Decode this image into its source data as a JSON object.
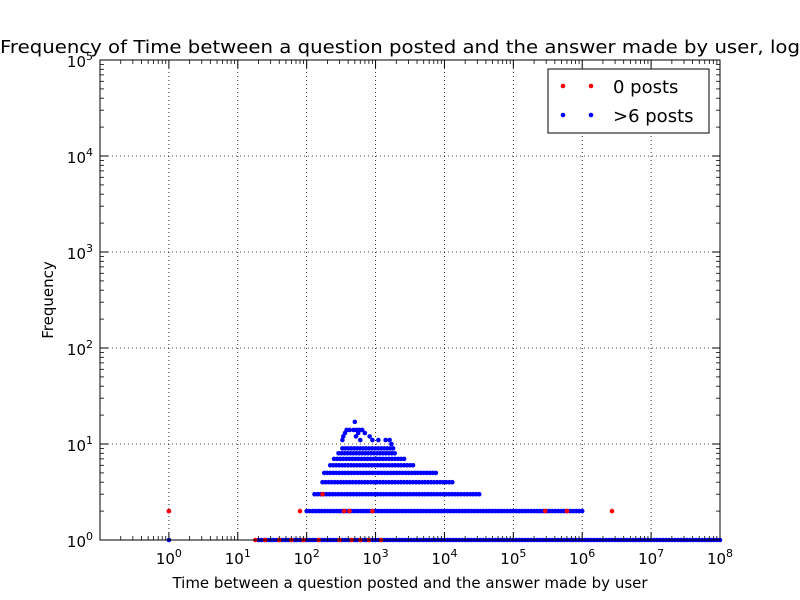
{
  "chart_data": {
    "type": "scatter",
    "title": "Frequency of Time between a question posted and the answer made by user, log",
    "xlabel": "Time between a question posted and the answer made by user",
    "ylabel": "Frequency",
    "x_scale": "log",
    "y_scale": "log",
    "xlim": [
      0.1,
      100000000
    ],
    "ylim": [
      1,
      100000
    ],
    "x_tick_labels": [
      {
        "base": "10",
        "exp": "0",
        "value": 1
      },
      {
        "base": "10",
        "exp": "1",
        "value": 10
      },
      {
        "base": "10",
        "exp": "2",
        "value": 100
      },
      {
        "base": "10",
        "exp": "3",
        "value": 1000
      },
      {
        "base": "10",
        "exp": "4",
        "value": 10000
      },
      {
        "base": "10",
        "exp": "5",
        "value": 100000
      },
      {
        "base": "10",
        "exp": "6",
        "value": 1000000
      },
      {
        "base": "10",
        "exp": "7",
        "value": 10000000
      },
      {
        "base": "10",
        "exp": "8",
        "value": 100000000
      }
    ],
    "y_tick_labels": [
      {
        "base": "10",
        "exp": "0",
        "value": 1
      },
      {
        "base": "10",
        "exp": "1",
        "value": 10
      },
      {
        "base": "10",
        "exp": "2",
        "value": 100
      },
      {
        "base": "10",
        "exp": "3",
        "value": 1000
      },
      {
        "base": "10",
        "exp": "4",
        "value": 10000
      },
      {
        "base": "10",
        "exp": "5",
        "value": 100000
      }
    ],
    "grid": true,
    "legend_position": "top-right",
    "series": [
      {
        "name": "0 posts",
        "color": "#ff0000",
        "points": [
          [
            1,
            2
          ],
          [
            80,
            2
          ],
          [
            170,
            3
          ],
          [
            350,
            2
          ],
          [
            420,
            2
          ],
          [
            900,
            2
          ],
          [
            290000,
            2
          ],
          [
            600000,
            2
          ],
          [
            2700000,
            2
          ],
          [
            18,
            1
          ],
          [
            25,
            1
          ],
          [
            40,
            1
          ],
          [
            60,
            1
          ],
          [
            90,
            1
          ],
          [
            150,
            1
          ],
          [
            300,
            1
          ],
          [
            450,
            1
          ],
          [
            600,
            1
          ],
          [
            800,
            1
          ],
          [
            1200,
            1
          ]
        ]
      },
      {
        "name": ">6 posts",
        "color": "#0000ff",
        "points": [
          [
            1,
            1
          ],
          [
            1,
            2
          ],
          [
            500,
            17
          ],
          [
            380,
            14
          ],
          [
            420,
            14
          ],
          [
            480,
            14
          ],
          [
            530,
            14
          ],
          [
            580,
            14
          ],
          [
            640,
            14
          ],
          [
            360,
            13
          ],
          [
            560,
            13
          ],
          [
            700,
            13
          ],
          [
            340,
            12
          ],
          [
            520,
            12
          ],
          [
            820,
            12
          ],
          [
            330,
            11
          ],
          [
            600,
            11
          ],
          [
            900,
            11
          ],
          [
            1100,
            11
          ],
          [
            1400,
            11
          ],
          [
            1600,
            11
          ],
          [
            1700,
            10
          ]
        ],
        "bands": [
          {
            "y": 9,
            "xmin": 330,
            "xmax": 1800
          },
          {
            "y": 8,
            "xmin": 290,
            "xmax": 1900
          },
          {
            "y": 7,
            "xmin": 250,
            "xmax": 2600
          },
          {
            "y": 6,
            "xmin": 220,
            "xmax": 3500
          },
          {
            "y": 5,
            "xmin": 180,
            "xmax": 7500
          },
          {
            "y": 4,
            "xmin": 170,
            "xmax": 13000
          },
          {
            "y": 3,
            "xmin": 130,
            "xmax": 32000
          },
          {
            "y": 2,
            "xmin": 100,
            "xmax": 1000000
          },
          {
            "y": 1,
            "xmin": 20,
            "xmax": 100000000
          }
        ]
      }
    ]
  }
}
